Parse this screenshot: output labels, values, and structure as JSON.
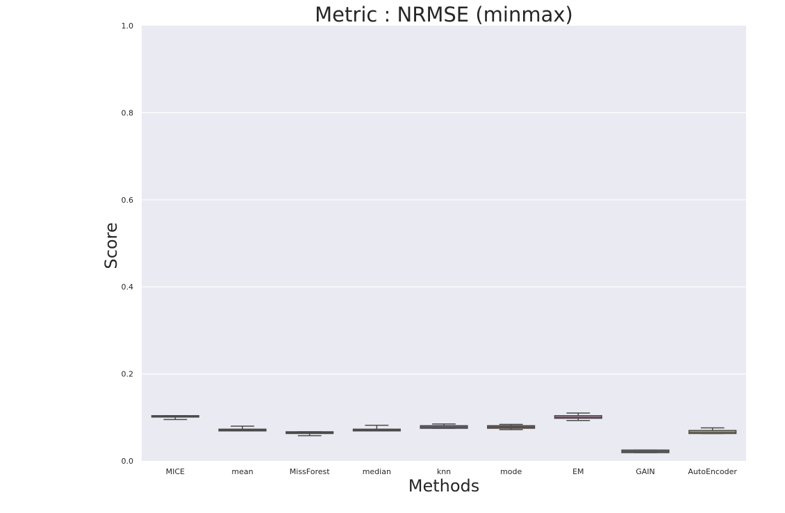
{
  "chart_data": {
    "type": "box",
    "title": "Metric : NRMSE (minmax)",
    "xlabel": "Methods",
    "ylabel": "Score",
    "ylim": [
      0,
      1.0
    ],
    "yticks": [
      "0.0",
      "0.2",
      "0.4",
      "0.6",
      "0.8",
      "1.0"
    ],
    "grid": true,
    "categories": [
      "MICE",
      "mean",
      "MissForest",
      "median",
      "knn",
      "mode",
      "EM",
      "GAIN",
      "AutoEncoder"
    ],
    "boxes": [
      {
        "category": "MICE",
        "min": 0.095,
        "q1": 0.101,
        "median": 0.103,
        "q3": 0.104,
        "max": 0.104,
        "color": "#5d74a5"
      },
      {
        "category": "mean",
        "min": 0.069,
        "q1": 0.069,
        "median": 0.071,
        "q3": 0.073,
        "max": 0.08,
        "color": "#b07a4a"
      },
      {
        "category": "MissForest",
        "min": 0.058,
        "q1": 0.063,
        "median": 0.065,
        "q3": 0.067,
        "max": 0.067,
        "color": "#6b9a6b"
      },
      {
        "category": "median",
        "min": 0.069,
        "q1": 0.069,
        "median": 0.071,
        "q3": 0.073,
        "max": 0.082,
        "color": "#c26a6a"
      },
      {
        "category": "knn",
        "min": 0.075,
        "q1": 0.075,
        "median": 0.078,
        "q3": 0.081,
        "max": 0.085,
        "color": "#8a7bb0"
      },
      {
        "category": "mode",
        "min": 0.072,
        "q1": 0.075,
        "median": 0.078,
        "q3": 0.081,
        "max": 0.084,
        "color": "#8c6d5a"
      },
      {
        "category": "EM",
        "min": 0.093,
        "q1": 0.098,
        "median": 0.1,
        "q3": 0.104,
        "max": 0.11,
        "color": "#c48ab8"
      },
      {
        "category": "GAIN",
        "min": 0.019,
        "q1": 0.019,
        "median": 0.022,
        "q3": 0.025,
        "max": 0.025,
        "color": "#8a8a8a"
      },
      {
        "category": "AutoEncoder",
        "min": 0.063,
        "q1": 0.063,
        "median": 0.066,
        "q3": 0.07,
        "max": 0.076,
        "color": "#c6bd72"
      }
    ]
  }
}
